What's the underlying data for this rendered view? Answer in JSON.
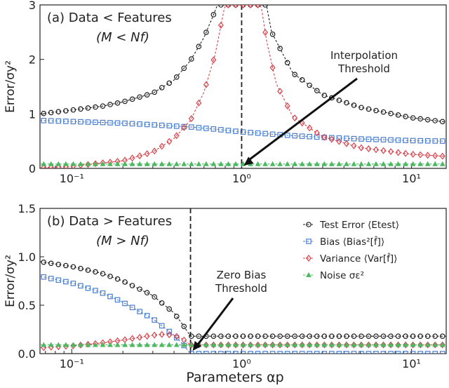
{
  "figure": {
    "xlabel": "Parameters αp",
    "colors": {
      "test_error": "#1f1f1f",
      "bias": "#4a7fd0",
      "variance": "#d8434c",
      "noise": "#4cb860"
    }
  },
  "legend": {
    "placement": "top-right of panel (b)",
    "entries": [
      {
        "label": "Test Error ⟨Etest⟩",
        "marker": "circle",
        "color": "#1f1f1f"
      },
      {
        "label": "Bias ⟨Bias²[f̂]⟩",
        "marker": "square",
        "color": "#4a7fd0"
      },
      {
        "label": "Variance ⟨Var[f̂]⟩",
        "marker": "diamond",
        "color": "#d8434c"
      },
      {
        "label": "Noise σε²",
        "marker": "triangle",
        "color": "#4cb860"
      }
    ]
  },
  "chart_data": [
    {
      "type": "line",
      "panel": "a",
      "title": "(a)  Data < Features",
      "subtitle": "(M < Nf)",
      "xlabel": "",
      "ylabel": "Error/σy²",
      "xscale": "log",
      "xlim": [
        0.065,
        16
      ],
      "ylim": [
        0,
        3
      ],
      "xticks": [
        0.1,
        1,
        10
      ],
      "xtick_labels": [
        "10⁻¹",
        "10⁰",
        "10¹"
      ],
      "yticks": [
        0,
        1,
        2,
        3
      ],
      "ytick_labels": [
        "0",
        "1",
        "2",
        "3"
      ],
      "vline": 1.0,
      "annotation": {
        "text": [
          "Interpolation",
          "Threshold"
        ],
        "points_to": [
          1.0,
          0.0
        ]
      },
      "series": [
        {
          "name": "Test Error",
          "marker": "circle",
          "color": "#1f1f1f",
          "x": [
            0.065,
            0.1,
            0.15,
            0.2,
            0.3,
            0.4,
            0.5,
            0.6,
            0.7,
            0.72,
            1.4,
            1.5,
            2,
            3,
            5,
            10,
            16
          ],
          "y": [
            1.0,
            1.07,
            1.14,
            1.22,
            1.38,
            1.62,
            1.98,
            2.4,
            2.9,
            3.0,
            3.0,
            2.5,
            1.75,
            1.35,
            1.12,
            0.93,
            0.85
          ]
        },
        {
          "name": "Bias",
          "marker": "square",
          "color": "#4a7fd0",
          "x": [
            0.065,
            0.1,
            0.2,
            0.3,
            0.5,
            0.7,
            1.0,
            2,
            3,
            5,
            10,
            16
          ],
          "y": [
            0.88,
            0.86,
            0.83,
            0.8,
            0.76,
            0.72,
            0.67,
            0.6,
            0.57,
            0.54,
            0.51,
            0.5
          ]
        },
        {
          "name": "Variance",
          "marker": "diamond",
          "color": "#d8434c",
          "x": [
            0.065,
            0.1,
            0.2,
            0.3,
            0.4,
            0.5,
            0.6,
            0.7,
            0.78,
            0.8,
            1.3,
            1.4,
            1.6,
            2,
            3,
            5,
            10,
            16
          ],
          "y": [
            0.01,
            0.04,
            0.14,
            0.3,
            0.55,
            0.88,
            1.4,
            2.1,
            2.85,
            3.0,
            3.0,
            2.35,
            1.55,
            0.95,
            0.58,
            0.38,
            0.26,
            0.22
          ]
        },
        {
          "name": "Noise",
          "marker": "triangle",
          "color": "#4cb860",
          "x": [
            0.065,
            16
          ],
          "y": [
            0.08,
            0.08
          ]
        }
      ]
    },
    {
      "type": "line",
      "panel": "b",
      "title": "(b)  Data > Features",
      "subtitle": "(M > Nf)",
      "xlabel": "Parameters αp",
      "ylabel": "Error/σy²",
      "xscale": "log",
      "xlim": [
        0.065,
        16
      ],
      "ylim": [
        0,
        1.5
      ],
      "xticks": [
        0.1,
        1,
        10
      ],
      "xtick_labels": [
        "10⁻¹",
        "10⁰",
        "10¹"
      ],
      "yticks": [
        0,
        0.5,
        1.0,
        1.5
      ],
      "ytick_labels": [
        "0.0",
        "0.5",
        "1.0",
        "1.5"
      ],
      "vline": 0.5,
      "annotation": {
        "text": [
          "Zero Bias",
          "Threshold"
        ],
        "points_to": [
          0.5,
          0.0
        ]
      },
      "series": [
        {
          "name": "Test Error",
          "marker": "circle",
          "color": "#1f1f1f",
          "x": [
            0.065,
            0.1,
            0.15,
            0.2,
            0.3,
            0.4,
            0.45,
            0.5,
            0.5,
            1,
            2,
            5,
            10,
            16
          ],
          "y": [
            0.95,
            0.9,
            0.83,
            0.75,
            0.6,
            0.42,
            0.3,
            0.18,
            0.18,
            0.18,
            0.18,
            0.18,
            0.18,
            0.18
          ]
        },
        {
          "name": "Bias",
          "marker": "square",
          "color": "#4a7fd0",
          "x": [
            0.065,
            0.1,
            0.15,
            0.2,
            0.3,
            0.4,
            0.45,
            0.5,
            1,
            16
          ],
          "y": [
            0.8,
            0.73,
            0.63,
            0.53,
            0.36,
            0.19,
            0.1,
            0.0,
            0.0,
            0.0
          ]
        },
        {
          "name": "Variance",
          "marker": "diamond",
          "color": "#d8434c",
          "x": [
            0.065,
            0.1,
            0.15,
            0.2,
            0.3,
            0.35,
            0.4,
            0.45,
            0.5,
            1,
            16
          ],
          "y": [
            0.06,
            0.08,
            0.11,
            0.14,
            0.19,
            0.2,
            0.19,
            0.15,
            0.09,
            0.09,
            0.09
          ]
        },
        {
          "name": "Noise",
          "marker": "triangle",
          "color": "#4cb860",
          "x": [
            0.065,
            16
          ],
          "y": [
            0.09,
            0.09
          ]
        }
      ]
    }
  ]
}
